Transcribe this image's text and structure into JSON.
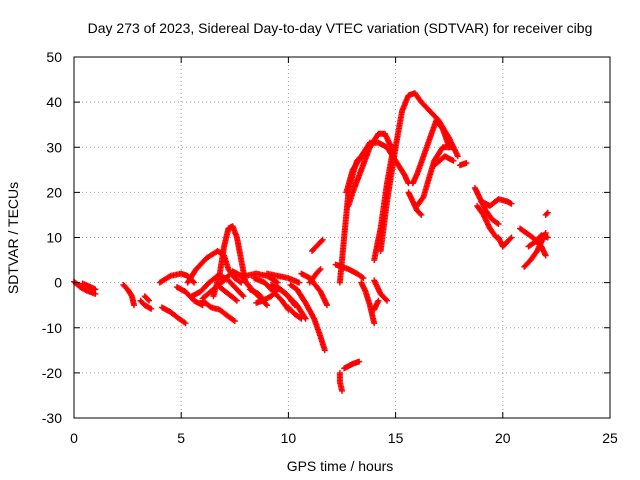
{
  "chart_data": {
    "type": "scatter",
    "title": "Day 273 of 2023, Sidereal Day-to-day VTEC variation (SDTVAR) for receiver cibg",
    "xlabel": "GPS time / hours",
    "ylabel": "SDTVAR / TECUs",
    "xlim": [
      0,
      25
    ],
    "ylim": [
      -30,
      50
    ],
    "xticks": [
      0,
      5,
      10,
      15,
      20,
      25
    ],
    "yticks": [
      -30,
      -20,
      -10,
      0,
      10,
      20,
      30,
      40,
      50
    ],
    "xtick_labels": [
      "0",
      "5",
      "10",
      "15",
      "20",
      "25"
    ],
    "ytick_labels": [
      "-30",
      "-20",
      "-10",
      "0",
      "10",
      "20",
      "30",
      "40",
      "50"
    ],
    "grid": true,
    "marker": "+",
    "color": "#ff0000",
    "tracks": [
      [
        [
          0.0,
          0.2
        ],
        [
          0.3,
          -1.0
        ],
        [
          0.6,
          -1.8
        ],
        [
          1.0,
          -2.5
        ]
      ],
      [
        [
          0.4,
          -0.2
        ],
        [
          0.7,
          -0.8
        ],
        [
          1.0,
          -1.5
        ]
      ],
      [
        [
          2.3,
          -0.5
        ],
        [
          2.5,
          -1.5
        ],
        [
          2.7,
          -3.0
        ],
        [
          2.8,
          -5.0
        ]
      ],
      [
        [
          3.1,
          -4.0
        ],
        [
          3.3,
          -5.0
        ],
        [
          3.6,
          -5.8
        ]
      ],
      [
        [
          3.3,
          -3.0
        ],
        [
          3.5,
          -4.0
        ]
      ],
      [
        [
          4.1,
          -5.5
        ],
        [
          4.5,
          -6.5
        ],
        [
          4.9,
          -8.0
        ],
        [
          5.2,
          -9.0
        ]
      ],
      [
        [
          4.0,
          0.0
        ],
        [
          4.5,
          1.5
        ],
        [
          5.0,
          2.0
        ],
        [
          5.3,
          1.5
        ],
        [
          5.6,
          0.0
        ]
      ],
      [
        [
          4.8,
          -1.0
        ],
        [
          5.2,
          -2.0
        ],
        [
          5.6,
          -4.0
        ],
        [
          6.0,
          -5.0
        ]
      ],
      [
        [
          5.3,
          0.0
        ],
        [
          5.7,
          3.0
        ],
        [
          6.2,
          5.5
        ],
        [
          6.7,
          7.0
        ],
        [
          7.0,
          6.0
        ],
        [
          7.2,
          3.0
        ],
        [
          7.5,
          1.0
        ],
        [
          7.8,
          0.0
        ]
      ],
      [
        [
          5.5,
          -3.0
        ],
        [
          5.9,
          -2.0
        ],
        [
          6.3,
          0.0
        ],
        [
          6.7,
          1.5
        ],
        [
          7.1,
          1.0
        ],
        [
          7.5,
          -1.0
        ],
        [
          7.9,
          -3.0
        ]
      ],
      [
        [
          6.0,
          -3.5
        ],
        [
          6.5,
          -1.5
        ],
        [
          7.0,
          0.5
        ],
        [
          7.4,
          2.5
        ],
        [
          7.8,
          1.5
        ],
        [
          8.2,
          -1.0
        ],
        [
          8.6,
          -3.0
        ],
        [
          9.0,
          -5.0
        ]
      ],
      [
        [
          6.5,
          -3.0
        ],
        [
          6.8,
          2.0
        ],
        [
          7.0,
          8.0
        ],
        [
          7.2,
          12.0
        ],
        [
          7.4,
          12.5
        ],
        [
          7.6,
          10.0
        ],
        [
          7.8,
          5.0
        ],
        [
          8.0,
          0.0
        ]
      ],
      [
        [
          6.0,
          -4.0
        ],
        [
          6.4,
          -5.5
        ],
        [
          6.8,
          -6.0
        ],
        [
          7.2,
          -7.5
        ],
        [
          7.5,
          -8.5
        ]
      ],
      [
        [
          6.8,
          -1.0
        ],
        [
          7.2,
          -2.5
        ],
        [
          7.6,
          -4.0
        ]
      ],
      [
        [
          8.0,
          1.5
        ],
        [
          8.5,
          2.0
        ],
        [
          9.0,
          1.5
        ],
        [
          9.5,
          0.0
        ]
      ],
      [
        [
          8.2,
          -1.5
        ],
        [
          8.6,
          -2.5
        ],
        [
          8.8,
          -3.5
        ]
      ],
      [
        [
          8.4,
          1.0
        ],
        [
          8.9,
          0.0
        ],
        [
          9.3,
          -2.0
        ],
        [
          9.7,
          -4.0
        ],
        [
          10.0,
          -6.0
        ]
      ],
      [
        [
          8.5,
          -4.5
        ],
        [
          8.8,
          -4.0
        ],
        [
          9.2,
          -3.0
        ],
        [
          9.5,
          -1.5
        ]
      ],
      [
        [
          9.0,
          2.0
        ],
        [
          9.5,
          1.5
        ],
        [
          10.0,
          1.0
        ],
        [
          10.5,
          0.0
        ]
      ],
      [
        [
          9.2,
          -0.5
        ],
        [
          9.6,
          -1.5
        ],
        [
          10.0,
          -3.0
        ],
        [
          10.4,
          -5.0
        ],
        [
          10.8,
          -8.0
        ]
      ],
      [
        [
          9.5,
          -1.0
        ],
        [
          9.9,
          -2.5
        ],
        [
          10.3,
          -5.0
        ]
      ],
      [
        [
          10.0,
          -5.5
        ],
        [
          10.3,
          -7.0
        ],
        [
          10.6,
          -8.0
        ]
      ],
      [
        [
          10.1,
          -0.5
        ],
        [
          10.4,
          -1.5
        ],
        [
          10.8,
          -4.5
        ],
        [
          11.2,
          -8.0
        ],
        [
          11.5,
          -12.0
        ],
        [
          11.7,
          -15.0
        ]
      ],
      [
        [
          10.6,
          2.0
        ],
        [
          11.0,
          1.0
        ],
        [
          11.5,
          -2.0
        ],
        [
          11.8,
          -5.0
        ]
      ],
      [
        [
          11.0,
          0.0
        ],
        [
          11.3,
          2.0
        ],
        [
          11.5,
          3.0
        ]
      ],
      [
        [
          11.1,
          7.0
        ],
        [
          11.3,
          8.0
        ],
        [
          11.6,
          9.5
        ]
      ],
      [
        [
          12.2,
          4.0
        ],
        [
          12.5,
          3.5
        ],
        [
          12.8,
          3.0
        ],
        [
          13.2,
          2.0
        ],
        [
          13.5,
          1.0
        ]
      ],
      [
        [
          12.4,
          0.0
        ],
        [
          12.6,
          10.0
        ],
        [
          12.8,
          20.0
        ],
        [
          13.0,
          24.0
        ],
        [
          13.2,
          27.0
        ],
        [
          13.4,
          28.0
        ]
      ],
      [
        [
          12.7,
          20.0
        ],
        [
          13.0,
          25.0
        ],
        [
          13.4,
          28.0
        ],
        [
          13.8,
          31.0
        ],
        [
          14.2,
          31.0
        ],
        [
          14.6,
          30.0
        ],
        [
          15.0,
          27.0
        ],
        [
          15.4,
          24.0
        ],
        [
          15.6,
          22.0
        ]
      ],
      [
        [
          12.8,
          17.0
        ],
        [
          13.0,
          20.0
        ],
        [
          13.4,
          25.0
        ],
        [
          13.8,
          30.0
        ],
        [
          14.2,
          33.0
        ],
        [
          14.5,
          33.0
        ],
        [
          14.8,
          30.0
        ]
      ],
      [
        [
          13.4,
          0.0
        ],
        [
          13.6,
          -2.0
        ],
        [
          13.8,
          -5.0
        ],
        [
          14.0,
          -9.0
        ]
      ],
      [
        [
          14.0,
          0.5
        ],
        [
          14.3,
          -2.5
        ],
        [
          14.6,
          -4.0
        ]
      ],
      [
        [
          14.0,
          5.0
        ],
        [
          14.3,
          12.0
        ],
        [
          14.6,
          22.0
        ],
        [
          14.9,
          30.0
        ]
      ],
      [
        [
          14.3,
          7.0
        ],
        [
          14.6,
          18.0
        ],
        [
          15.0,
          30.0
        ],
        [
          15.3,
          38.0
        ],
        [
          15.6,
          41.5
        ],
        [
          15.9,
          42.0
        ],
        [
          16.2,
          40.0
        ],
        [
          16.6,
          38.0
        ],
        [
          17.0,
          36.0
        ],
        [
          17.5,
          32.0
        ],
        [
          17.9,
          28.0
        ]
      ],
      [
        [
          15.8,
          22.0
        ],
        [
          16.0,
          24.0
        ],
        [
          16.3,
          28.0
        ],
        [
          16.6,
          32.0
        ],
        [
          16.9,
          36.0
        ],
        [
          17.2,
          34.0
        ],
        [
          17.5,
          30.0
        ]
      ],
      [
        [
          16.0,
          17.0
        ],
        [
          16.3,
          19.0
        ],
        [
          16.8,
          27.0
        ],
        [
          17.2,
          30.0
        ],
        [
          17.6,
          30.0
        ]
      ],
      [
        [
          16.8,
          26.0
        ],
        [
          17.3,
          28.0
        ],
        [
          17.7,
          27.0
        ]
      ],
      [
        [
          18.0,
          26.0
        ],
        [
          18.3,
          26.5
        ]
      ],
      [
        [
          15.6,
          20.0
        ],
        [
          15.8,
          18.0
        ],
        [
          16.0,
          16.0
        ],
        [
          16.2,
          15.0
        ]
      ],
      [
        [
          18.7,
          21.0
        ],
        [
          18.9,
          19.0
        ],
        [
          19.2,
          16.0
        ],
        [
          19.5,
          14.0
        ],
        [
          19.8,
          13.0
        ]
      ],
      [
        [
          18.8,
          17.0
        ],
        [
          19.1,
          15.0
        ],
        [
          19.4,
          12.0
        ],
        [
          19.7,
          10.0
        ]
      ],
      [
        [
          19.0,
          18.0
        ],
        [
          19.4,
          17.0
        ],
        [
          19.8,
          18.5
        ],
        [
          20.2,
          18.0
        ],
        [
          20.4,
          17.5
        ]
      ],
      [
        [
          19.8,
          10.0
        ],
        [
          20.0,
          8.0
        ],
        [
          20.2,
          9.0
        ],
        [
          20.4,
          10.0
        ]
      ],
      [
        [
          20.8,
          12.0
        ],
        [
          21.1,
          11.0
        ],
        [
          21.4,
          10.0
        ],
        [
          21.8,
          8.0
        ],
        [
          22.0,
          6.0
        ]
      ],
      [
        [
          21.0,
          3.5
        ],
        [
          21.3,
          5.0
        ],
        [
          21.6,
          7.0
        ],
        [
          22.0,
          11.0
        ]
      ],
      [
        [
          21.2,
          8.0
        ],
        [
          21.5,
          9.0
        ],
        [
          21.8,
          10.5
        ],
        [
          22.1,
          10.0
        ]
      ],
      [
        [
          22.0,
          15.0
        ],
        [
          22.1,
          15.5
        ]
      ],
      [
        [
          12.4,
          -20.0
        ],
        [
          12.4,
          -22.0
        ],
        [
          12.5,
          -24.0
        ]
      ],
      [
        [
          12.6,
          -19.0
        ],
        [
          12.8,
          -18.5
        ],
        [
          13.0,
          -18.0
        ],
        [
          13.3,
          -17.5
        ]
      ],
      [
        [
          14.0,
          -6.0
        ],
        [
          14.2,
          -4.0
        ]
      ]
    ]
  }
}
